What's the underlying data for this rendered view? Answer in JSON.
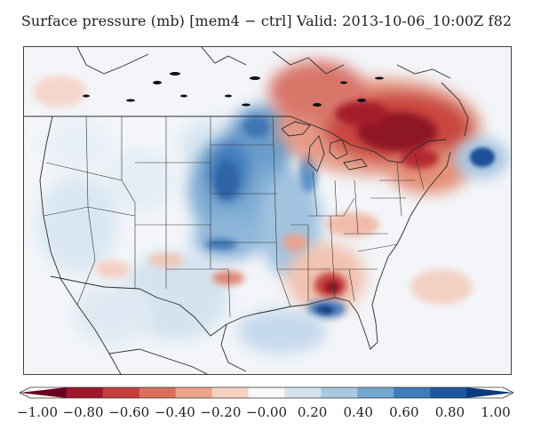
{
  "title": "Surface pressure (mb) [mem4 − ctrl] Valid: 2013-10-06_10:00Z f82",
  "forecast_hour_label": "82 hr",
  "colorbar": {
    "min": -1.0,
    "max": 1.0,
    "tick_labels": [
      "−1.00",
      "−0.80",
      "−0.60",
      "−0.40",
      "−0.20",
      "−0.00",
      "0.20",
      "0.40",
      "0.60",
      "0.80",
      "1.00"
    ],
    "tick_values": [
      -1.0,
      -0.8,
      -0.6,
      -0.4,
      -0.2,
      0.0,
      0.2,
      0.4,
      0.6,
      0.8,
      1.0
    ],
    "colors": [
      "#67001f",
      "#a0182a",
      "#c53e3d",
      "#dc6e5c",
      "#eea48a",
      "#f7d2c2",
      "#f7f7f7",
      "#d5e3f0",
      "#a9c9e2",
      "#72a7cf",
      "#3f7dba",
      "#1c58a0",
      "#0b3a7e"
    ]
  }
}
